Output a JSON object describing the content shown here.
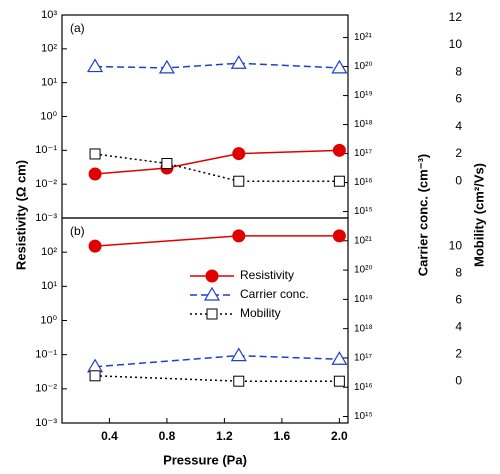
{
  "chart_data": [
    {
      "type": "line",
      "panel_label": "(a)",
      "xlim": [
        0.07,
        2.06
      ],
      "x": [
        0.3,
        0.8,
        1.3,
        2.0
      ],
      "ylim": [
        0.001,
        1000
      ],
      "ylog": true,
      "yticks": [
        {
          "value": 0.001,
          "label": "10⁻³"
        },
        {
          "value": 0.01,
          "label": "10⁻²"
        },
        {
          "value": 0.1,
          "label": "10⁻¹"
        },
        {
          "value": 1,
          "label": "10⁰"
        },
        {
          "value": 10,
          "label": "10¹"
        },
        {
          "value": 100,
          "label": "10²"
        },
        {
          "value": 1000,
          "label": "10³"
        }
      ],
      "y2lim": [
        600000000000000.0,
        6e+21
      ],
      "y2log": true,
      "y2ticks": [
        {
          "value": 1000000000000000.0,
          "label": "10¹⁵"
        },
        {
          "value": 1e+16,
          "label": "10¹⁶"
        },
        {
          "value": 1e+17,
          "label": "10¹⁷"
        },
        {
          "value": 1e+18,
          "label": "10¹⁸"
        },
        {
          "value": 1e+19,
          "label": "10¹⁹"
        },
        {
          "value": 1e+20,
          "label": "10²⁰"
        },
        {
          "value": 1e+21,
          "label": "10²¹"
        }
      ],
      "y3lim": [
        -2.7,
        12.2
      ],
      "y3ticks": [
        0,
        2,
        4,
        6,
        8,
        10,
        12
      ],
      "series": [
        {
          "name": "Resistivity",
          "color": "#e00000",
          "axis": "y",
          "marker": "circle",
          "linestyle": "solid",
          "values": [
            0.02,
            0.03,
            0.08,
            0.1
          ]
        },
        {
          "name": "Carrier conc.",
          "color": "#1f3fd0",
          "axis": "y2",
          "marker": "triangle",
          "linestyle": "dashed",
          "values": [
            1e+20,
            9e+19,
            1.3e+20,
            9e+19
          ]
        },
        {
          "name": "Mobility",
          "color": "#000000",
          "axis": "y3",
          "marker": "square",
          "linestyle": "dotted",
          "values": [
            2.0,
            1.3,
            0.0,
            0.0
          ]
        }
      ]
    },
    {
      "type": "line",
      "panel_label": "(b)",
      "legend": "center",
      "xlim": [
        0.07,
        2.06
      ],
      "xticks": [
        0.4,
        0.8,
        1.2,
        1.6,
        {
          "value": 2.0,
          "label": "2.0"
        }
      ],
      "x": [
        0.3,
        1.3,
        2.0
      ],
      "ylim": [
        0.001,
        1000
      ],
      "ylog": true,
      "yticks": [
        {
          "value": 0.001,
          "label": "10⁻³"
        },
        {
          "value": 0.01,
          "label": "10⁻²"
        },
        {
          "value": 0.1,
          "label": "10⁻¹"
        },
        {
          "value": 1,
          "label": "10⁰"
        },
        {
          "value": 10,
          "label": "10¹"
        },
        {
          "value": 100,
          "label": "10²"
        }
      ],
      "y2lim": [
        600000000000000.0,
        6e+21
      ],
      "y2log": true,
      "y2ticks": [
        {
          "value": 1000000000000000.0,
          "label": "10¹⁵"
        },
        {
          "value": 1e+16,
          "label": "10¹⁶"
        },
        {
          "value": 1e+17,
          "label": "10¹⁷"
        },
        {
          "value": 1e+18,
          "label": "10¹⁸"
        },
        {
          "value": 1e+19,
          "label": "10¹⁹"
        },
        {
          "value": 1e+20,
          "label": "10²⁰"
        },
        {
          "value": 1e+21,
          "label": "10²¹"
        }
      ],
      "y3lim": [
        -3.1,
        12.1
      ],
      "y3ticks": [
        0,
        2,
        4,
        6,
        8,
        10
      ],
      "series": [
        {
          "name": "Resistivity",
          "color": "#e00000",
          "axis": "y",
          "marker": "circle",
          "linestyle": "solid",
          "values": [
            150,
            300,
            300
          ]
        },
        {
          "name": "Carrier conc.",
          "color": "#1f3fd0",
          "axis": "y2",
          "marker": "triangle",
          "linestyle": "dashed",
          "values": [
            5e+16,
            1.2e+17,
            9e+16
          ]
        },
        {
          "name": "Mobility",
          "color": "#000000",
          "axis": "y3",
          "marker": "square",
          "linestyle": "dotted",
          "values": [
            0.4,
            0.0,
            0.0
          ]
        }
      ]
    }
  ],
  "x_label": "Pressure (Pa)",
  "y_label": "Resistivity (Ω cm)",
  "y2_label": "Carrier conc. (cm⁻³)",
  "y3_label": "Mobility (cm²/Vs)"
}
